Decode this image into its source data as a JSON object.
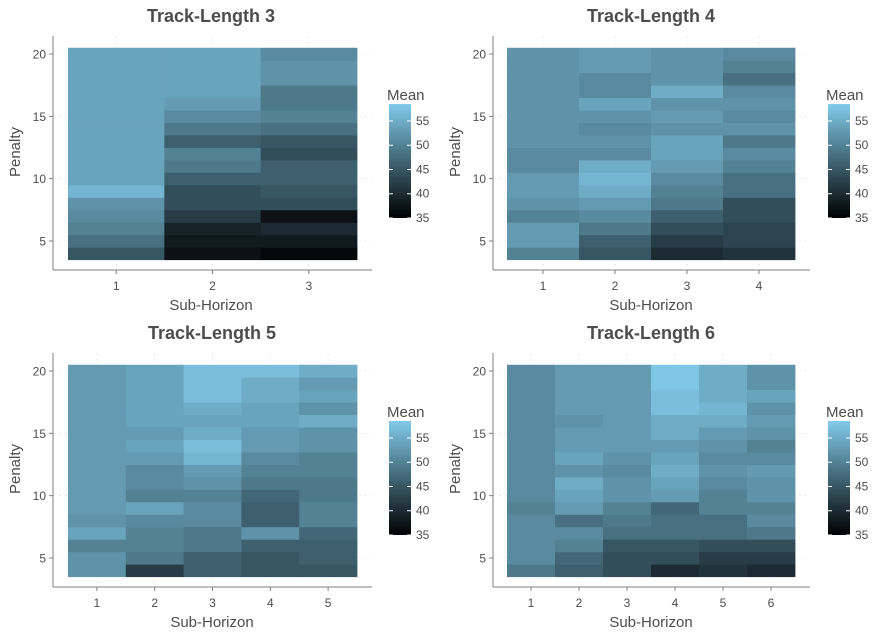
{
  "layout_colors": {
    "axis": "#7f7f7f",
    "text": "#4d4d4d",
    "grid": "#d9d9d9"
  },
  "colorbar": {
    "low_color": "#000000",
    "high_color": "#82cbea",
    "min": 35,
    "max": 58.5,
    "ticks": [
      35,
      40,
      45,
      50,
      55
    ]
  },
  "chart_data": [
    {
      "type": "heatmap",
      "title": "Track-Length 3",
      "xlabel": "Sub-Horizon",
      "ylabel": "Penalty",
      "legend_title": "Mean",
      "x": [
        1,
        2,
        3
      ],
      "y": [
        4,
        5,
        6,
        7,
        8,
        9,
        10,
        11,
        12,
        13,
        14,
        15,
        16,
        17,
        18,
        19,
        20
      ],
      "y_ticks": [
        5,
        10,
        15,
        20
      ],
      "z": [
        [
          45,
          37,
          36
        ],
        [
          48,
          38,
          38
        ],
        [
          50,
          39,
          40
        ],
        [
          51,
          42,
          37
        ],
        [
          52,
          44,
          44
        ],
        [
          56,
          44,
          45
        ],
        [
          54,
          46,
          46
        ],
        [
          54,
          49,
          46
        ],
        [
          54,
          50,
          44
        ],
        [
          54,
          46,
          45
        ],
        [
          54,
          49,
          48
        ],
        [
          54,
          51,
          50
        ],
        [
          54,
          53,
          49
        ],
        [
          54,
          54,
          49
        ],
        [
          54,
          54,
          52
        ],
        [
          54,
          54,
          52
        ],
        [
          54,
          54,
          51
        ]
      ]
    },
    {
      "type": "heatmap",
      "title": "Track-Length 4",
      "xlabel": "Sub-Horizon",
      "ylabel": "Penalty",
      "legend_title": "Mean",
      "x": [
        1,
        2,
        3,
        4
      ],
      "y": [
        4,
        5,
        6,
        7,
        8,
        9,
        10,
        11,
        12,
        13,
        14,
        15,
        16,
        17,
        18,
        19,
        20
      ],
      "y_ticks": [
        5,
        10,
        15,
        20
      ],
      "z": [
        [
          50,
          45,
          40,
          41
        ],
        [
          53,
          46,
          42,
          43
        ],
        [
          53,
          49,
          44,
          43
        ],
        [
          50,
          51,
          46,
          44
        ],
        [
          52,
          53,
          49,
          44
        ],
        [
          53,
          55,
          50,
          48
        ],
        [
          53,
          56,
          51,
          48
        ],
        [
          51,
          55,
          53,
          50
        ],
        [
          51,
          51,
          54,
          51
        ],
        [
          52,
          52,
          54,
          49
        ],
        [
          52,
          51,
          52,
          52
        ],
        [
          52,
          52,
          53,
          51
        ],
        [
          52,
          54,
          52,
          52
        ],
        [
          52,
          51,
          55,
          51
        ],
        [
          52,
          51,
          52,
          48
        ],
        [
          52,
          53,
          52,
          50
        ],
        [
          52,
          53,
          52,
          51
        ]
      ]
    },
    {
      "type": "heatmap",
      "title": "Track-Length 5",
      "xlabel": "Sub-Horizon",
      "ylabel": "Penalty",
      "legend_title": "Mean",
      "x": [
        1,
        2,
        3,
        4,
        5
      ],
      "y": [
        4,
        5,
        6,
        7,
        8,
        9,
        10,
        11,
        12,
        13,
        14,
        15,
        16,
        17,
        18,
        19,
        20
      ],
      "y_ticks": [
        5,
        10,
        15,
        20
      ],
      "z": [
        [
          52,
          42,
          46,
          45,
          45
        ],
        [
          52,
          49,
          46,
          45,
          46
        ],
        [
          50,
          50,
          49,
          46,
          46
        ],
        [
          54,
          50,
          49,
          52,
          47
        ],
        [
          52,
          51,
          51,
          46,
          50
        ],
        [
          53,
          54,
          51,
          46,
          50
        ],
        [
          53,
          50,
          50,
          47,
          49
        ],
        [
          53,
          51,
          52,
          49,
          49
        ],
        [
          53,
          51,
          53,
          50,
          50
        ],
        [
          53,
          53,
          56,
          51,
          50
        ],
        [
          53,
          54,
          57,
          53,
          52
        ],
        [
          53,
          53,
          55,
          53,
          52
        ],
        [
          53,
          54,
          54,
          54,
          55
        ],
        [
          53,
          54,
          55,
          54,
          52
        ],
        [
          53,
          54,
          57,
          55,
          54
        ],
        [
          53,
          54,
          57,
          55,
          53
        ],
        [
          53,
          54,
          57,
          57,
          55
        ]
      ]
    },
    {
      "type": "heatmap",
      "title": "Track-Length 6",
      "xlabel": "Sub-Horizon",
      "ylabel": "Penalty",
      "legend_title": "Mean",
      "x": [
        1,
        2,
        3,
        4,
        5,
        6
      ],
      "y": [
        4,
        5,
        6,
        7,
        8,
        9,
        10,
        11,
        12,
        13,
        14,
        15,
        16,
        17,
        18,
        19,
        20
      ],
      "y_ticks": [
        5,
        10,
        15,
        20
      ],
      "z": [
        [
          49,
          46,
          44,
          40,
          41,
          40
        ],
        [
          51,
          47,
          44,
          44,
          42,
          42
        ],
        [
          51,
          50,
          45,
          45,
          44,
          44
        ],
        [
          51,
          51,
          48,
          48,
          48,
          49
        ],
        [
          51,
          48,
          49,
          48,
          48,
          51
        ],
        [
          50,
          53,
          50,
          47,
          50,
          50
        ],
        [
          51,
          54,
          52,
          53,
          50,
          52
        ],
        [
          51,
          55,
          52,
          54,
          51,
          52
        ],
        [
          51,
          52,
          51,
          55,
          52,
          53
        ],
        [
          51,
          54,
          52,
          54,
          51,
          51
        ],
        [
          51,
          53,
          53,
          53,
          52,
          50
        ],
        [
          51,
          53,
          53,
          55,
          53,
          52
        ],
        [
          51,
          52,
          53,
          55,
          55,
          53
        ],
        [
          51,
          53,
          53,
          57,
          56,
          52
        ],
        [
          51,
          53,
          53,
          57,
          55,
          54
        ],
        [
          51,
          53,
          53,
          58,
          55,
          52
        ],
        [
          51,
          53,
          53,
          58,
          55,
          52
        ]
      ]
    }
  ]
}
